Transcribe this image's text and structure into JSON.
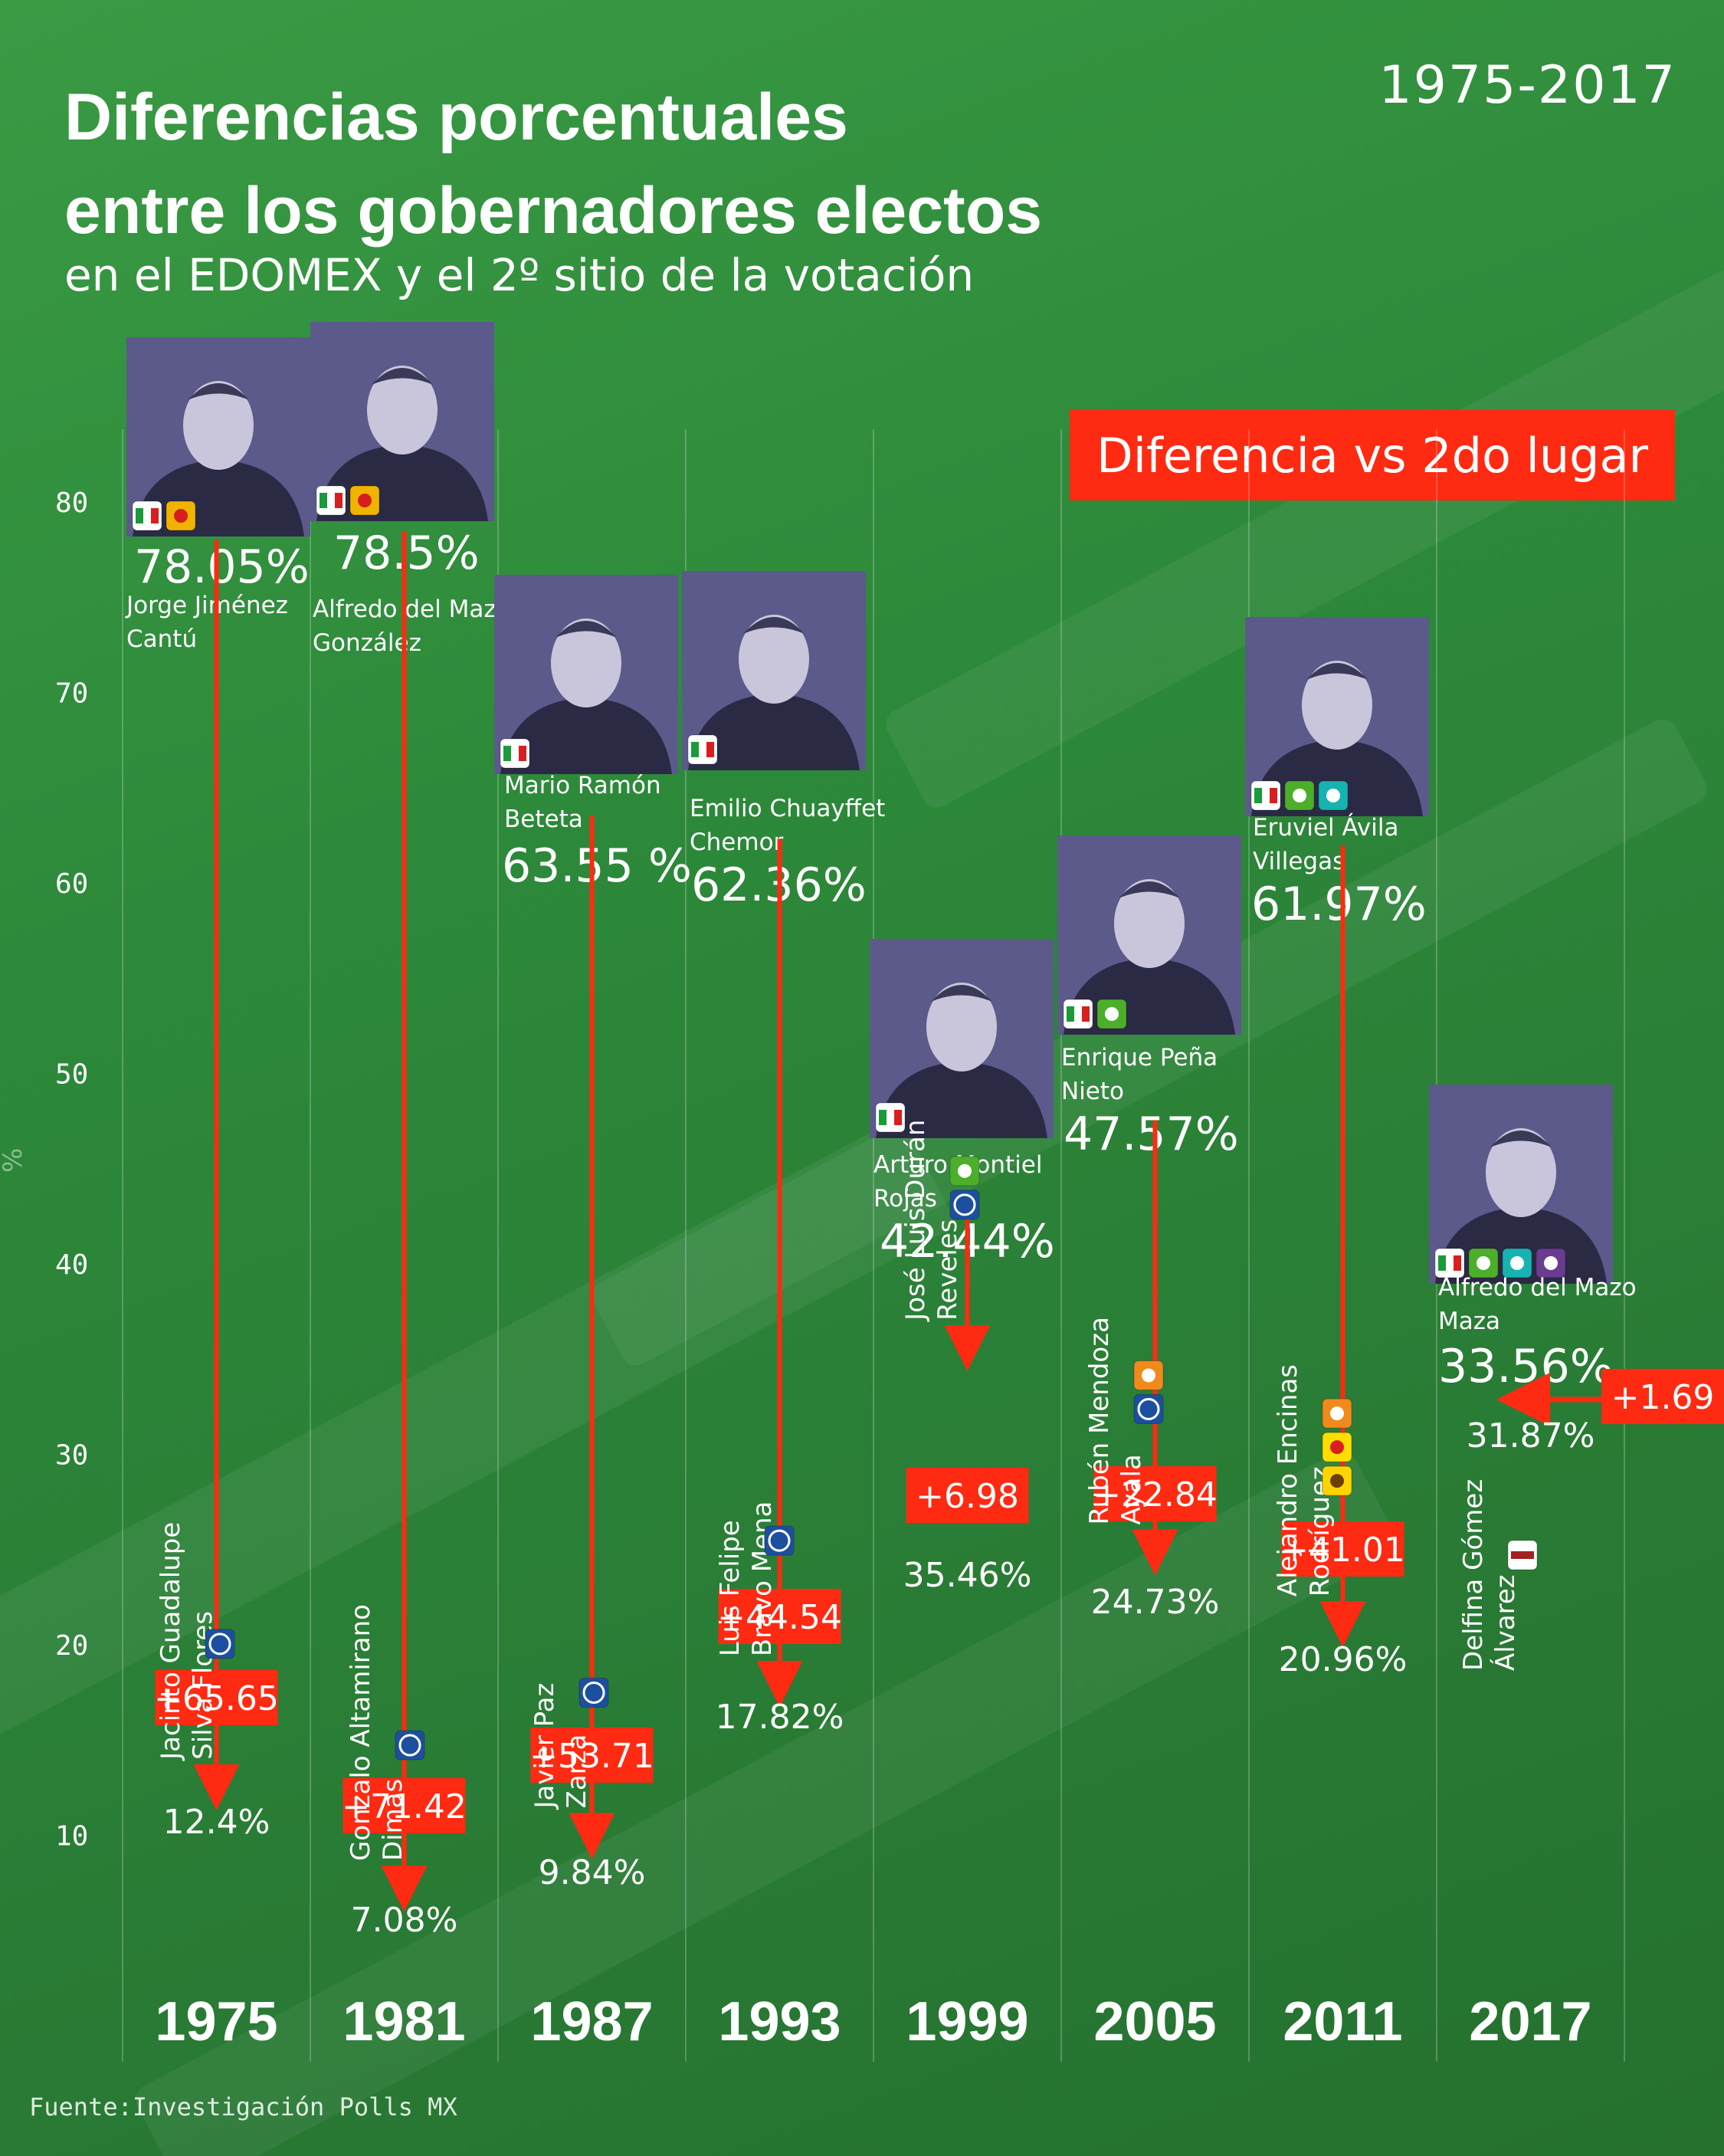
{
  "header": {
    "title_line1": "Diferencias porcentuales",
    "title_line2": "entre los gobernadores electos",
    "subtitle": "en el EDOMEX y el 2º sitio de la votación",
    "range": "1975-2017"
  },
  "legend": {
    "label": "Diferencia vs 2do lugar"
  },
  "footer": {
    "source": "Fuente:Investigación Polls MX"
  },
  "colors": {
    "accent": "#ff2a12",
    "background": "#2e8a3c",
    "photo_tint": "#5b5a8a"
  },
  "chart_data": {
    "type": "bar",
    "title": "Diferencias porcentuales entre los gobernadores electos",
    "subtitle": "en el EDOMEX y el 2º sitio de la votación",
    "ylabel": "%",
    "ylim": [
      4,
      84
    ],
    "yticks": [
      10,
      20,
      30,
      40,
      50,
      60,
      70,
      80
    ],
    "grid": true,
    "categories": [
      "1975",
      "1981",
      "1987",
      "1993",
      "1999",
      "2005",
      "2011",
      "2017"
    ],
    "series": [
      {
        "values": [
          78.05,
          78.5,
          63.55,
          62.36,
          42.44,
          47.57,
          61.97,
          33.56
        ]
      },
      {
        "values": [
          12.4,
          7.08,
          9.84,
          17.82,
          35.46,
          24.73,
          20.96,
          31.87
        ]
      }
    ],
    "elections": [
      {
        "year": "1975",
        "winner_name": [
          "Jorge Jiménez",
          "Cantú"
        ],
        "winner_pct": "78.05%",
        "winner_value": 78.05,
        "winner_parties": [
          "PRI",
          "PPS"
        ],
        "runner_name": [
          "Jacinto Guadalupe",
          "Silva Flores"
        ],
        "runner_parties": [
          "PAN"
        ],
        "runner_pct": "12.4%",
        "runner_value": 12.4,
        "diff": "+65.65"
      },
      {
        "year": "1981",
        "winner_name": [
          "Alfredo del Mazo",
          "González"
        ],
        "winner_pct": "78.5%",
        "winner_value": 78.5,
        "winner_parties": [
          "PRI",
          "PPS"
        ],
        "runner_name": [
          "Gonzalo Altamirano",
          "Dimas"
        ],
        "runner_parties": [
          "PAN"
        ],
        "runner_pct": "7.08%",
        "runner_value": 7.08,
        "diff": "+71.42"
      },
      {
        "year": "1987",
        "winner_name": [
          "Mario Ramón",
          "Beteta"
        ],
        "winner_pct": "63.55 %",
        "winner_value": 63.55,
        "winner_parties": [
          "PRI"
        ],
        "runner_name": [
          "Javier Paz",
          "Zarza"
        ],
        "runner_parties": [
          "PAN"
        ],
        "runner_pct": "9.84%",
        "runner_value": 9.84,
        "diff": "+53.71"
      },
      {
        "year": "1993",
        "winner_name": [
          "Emilio Chuayffet",
          "Chemor"
        ],
        "winner_pct": "62.36%",
        "winner_value": 62.36,
        "winner_parties": [
          "PRI"
        ],
        "runner_name": [
          "Luis Felipe",
          "Bravo Mena"
        ],
        "runner_parties": [
          "PAN"
        ],
        "runner_pct": "17.82%",
        "runner_value": 17.82,
        "diff": "+44.54"
      },
      {
        "year": "1999",
        "winner_name": [
          "Arturo Montiel",
          "Rojas"
        ],
        "winner_pct": "42.44%",
        "winner_value": 42.44,
        "winner_parties": [
          "PRI"
        ],
        "runner_name": [
          "José Luis Durán",
          "Reveles"
        ],
        "runner_parties": [
          "PAN",
          "VERDE"
        ],
        "runner_pct": "35.46%",
        "runner_value": 35.46,
        "diff": "+6.98"
      },
      {
        "year": "2005",
        "winner_name": [
          "Enrique Peña",
          "Nieto"
        ],
        "winner_pct": "47.57%",
        "winner_value": 47.57,
        "winner_parties": [
          "PRI",
          "VERDE"
        ],
        "runner_name": [
          "Rubén Mendoza",
          "Ayala"
        ],
        "runner_parties": [
          "PAN",
          "CONV"
        ],
        "runner_pct": "24.73%",
        "runner_value": 24.73,
        "diff": "+22.84"
      },
      {
        "year": "2011",
        "winner_name": [
          "Eruviel Ávila",
          "Villegas"
        ],
        "winner_pct": "61.97%",
        "winner_value": 61.97,
        "winner_parties": [
          "PRI",
          "VERDE",
          "alianza"
        ],
        "runner_name": [
          "Alejandro Encinas",
          "Rodríguez"
        ],
        "runner_parties": [
          "PRD",
          "PT",
          "CONV"
        ],
        "runner_pct": "20.96%",
        "runner_value": 20.96,
        "diff": "+41.01"
      },
      {
        "year": "2017",
        "winner_name": [
          "Alfredo del Mazo",
          "Maza"
        ],
        "winner_pct": "33.56%",
        "winner_value": 33.56,
        "winner_parties": [
          "PRI",
          "VERDE",
          "alianza",
          "PES"
        ],
        "runner_name": [
          "Delfina Gómez",
          "Álvarez"
        ],
        "runner_parties": [
          "morena"
        ],
        "runner_pct": "31.87%",
        "runner_value": 31.87,
        "diff": "+1.69"
      }
    ]
  }
}
